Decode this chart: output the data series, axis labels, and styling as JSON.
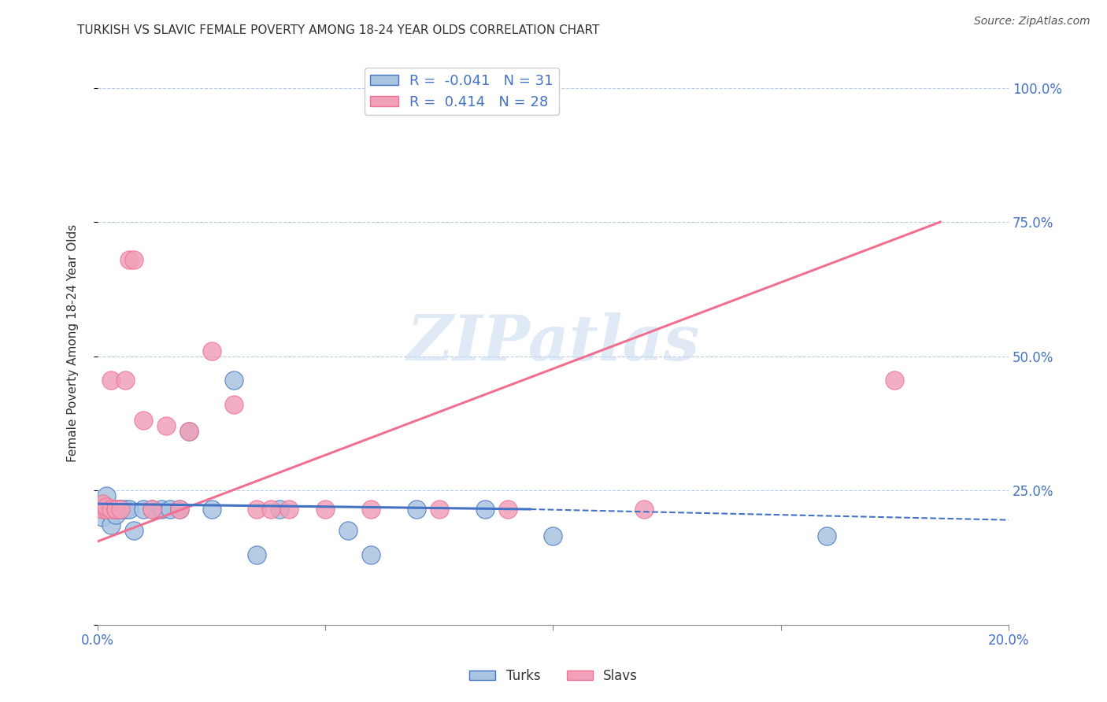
{
  "title": "TURKISH VS SLAVIC FEMALE POVERTY AMONG 18-24 YEAR OLDS CORRELATION CHART",
  "source": "Source: ZipAtlas.com",
  "ylabel": "Female Poverty Among 18-24 Year Olds",
  "xlim": [
    0.0,
    0.2
  ],
  "ylim": [
    0.0,
    1.05
  ],
  "turks_color": "#a8c4e0",
  "slavs_color": "#f0a0b8",
  "turks_line_color": "#4472c4",
  "slavs_line_color": "#f07090",
  "turks_R": -0.041,
  "turks_N": 31,
  "slavs_R": 0.414,
  "slavs_N": 28,
  "watermark": "ZIPatlas",
  "turks_x": [
    0.001,
    0.001,
    0.001,
    0.002,
    0.002,
    0.002,
    0.003,
    0.003,
    0.004,
    0.004,
    0.005,
    0.005,
    0.006,
    0.007,
    0.008,
    0.01,
    0.012,
    0.014,
    0.016,
    0.018,
    0.02,
    0.025,
    0.03,
    0.035,
    0.04,
    0.055,
    0.06,
    0.07,
    0.085,
    0.1,
    0.16
  ],
  "turks_y": [
    0.215,
    0.225,
    0.2,
    0.215,
    0.22,
    0.24,
    0.215,
    0.185,
    0.205,
    0.215,
    0.215,
    0.215,
    0.215,
    0.215,
    0.175,
    0.215,
    0.215,
    0.215,
    0.215,
    0.215,
    0.36,
    0.215,
    0.455,
    0.13,
    0.215,
    0.175,
    0.13,
    0.215,
    0.215,
    0.165,
    0.165
  ],
  "slavs_x": [
    0.001,
    0.001,
    0.002,
    0.002,
    0.003,
    0.003,
    0.004,
    0.004,
    0.005,
    0.006,
    0.007,
    0.008,
    0.01,
    0.012,
    0.015,
    0.018,
    0.02,
    0.025,
    0.03,
    0.035,
    0.038,
    0.042,
    0.05,
    0.06,
    0.075,
    0.09,
    0.12,
    0.175
  ],
  "slavs_y": [
    0.215,
    0.225,
    0.215,
    0.22,
    0.215,
    0.455,
    0.215,
    0.215,
    0.215,
    0.455,
    0.68,
    0.68,
    0.38,
    0.215,
    0.37,
    0.215,
    0.36,
    0.51,
    0.41,
    0.215,
    0.215,
    0.215,
    0.215,
    0.215,
    0.215,
    0.215,
    0.215,
    0.455
  ],
  "turks_line_x0": 0.0,
  "turks_line_x_solid_end": 0.095,
  "turks_line_x1": 0.2,
  "slavs_line_x0": 0.0,
  "slavs_line_x1": 0.185
}
